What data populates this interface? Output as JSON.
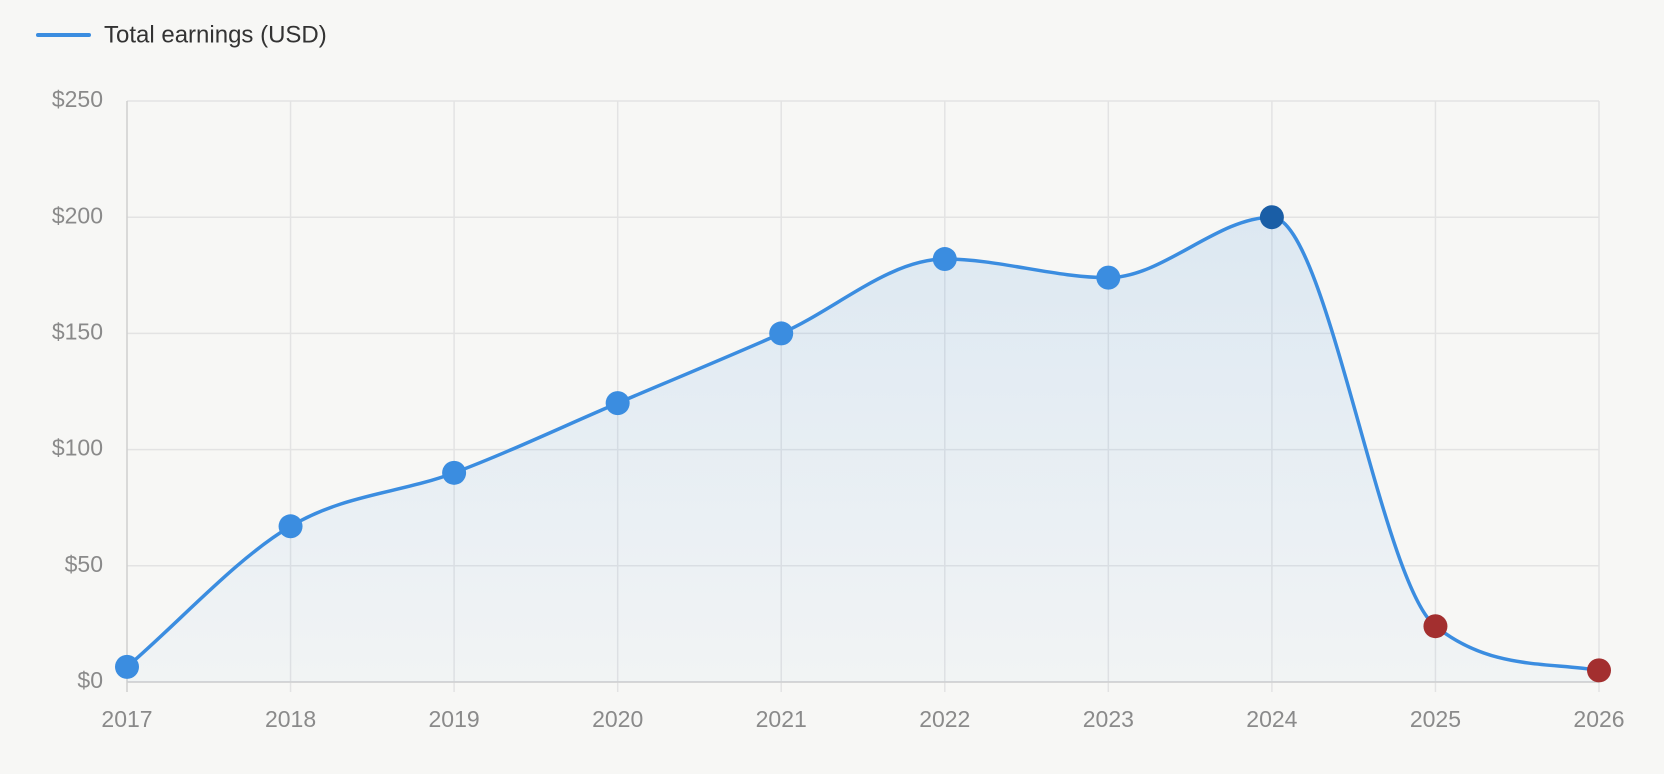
{
  "chart_data": {
    "type": "line",
    "categories": [
      "2017",
      "2018",
      "2019",
      "2020",
      "2021",
      "2022",
      "2023",
      "2024",
      "2025",
      "2026"
    ],
    "series": [
      {
        "name": "Total earnings (USD)",
        "color": "#3b8de0",
        "values": [
          6.5,
          67,
          90,
          120,
          150,
          182,
          174,
          200,
          24,
          5
        ],
        "point_colors": [
          "#3b8de0",
          "#3b8de0",
          "#3b8de0",
          "#3b8de0",
          "#3b8de0",
          "#3b8de0",
          "#3b8de0",
          "#1a5ea6",
          "#a32f2f",
          "#a32f2f"
        ]
      }
    ],
    "ylim": [
      0,
      250
    ],
    "yticks": [
      {
        "value": 0,
        "label": "$0"
      },
      {
        "value": 50,
        "label": "$50"
      },
      {
        "value": 100,
        "label": "$100"
      },
      {
        "value": 150,
        "label": "$150"
      },
      {
        "value": 200,
        "label": "$200"
      },
      {
        "value": 250,
        "label": "$250"
      }
    ],
    "grid": true,
    "legend": "top-left"
  }
}
